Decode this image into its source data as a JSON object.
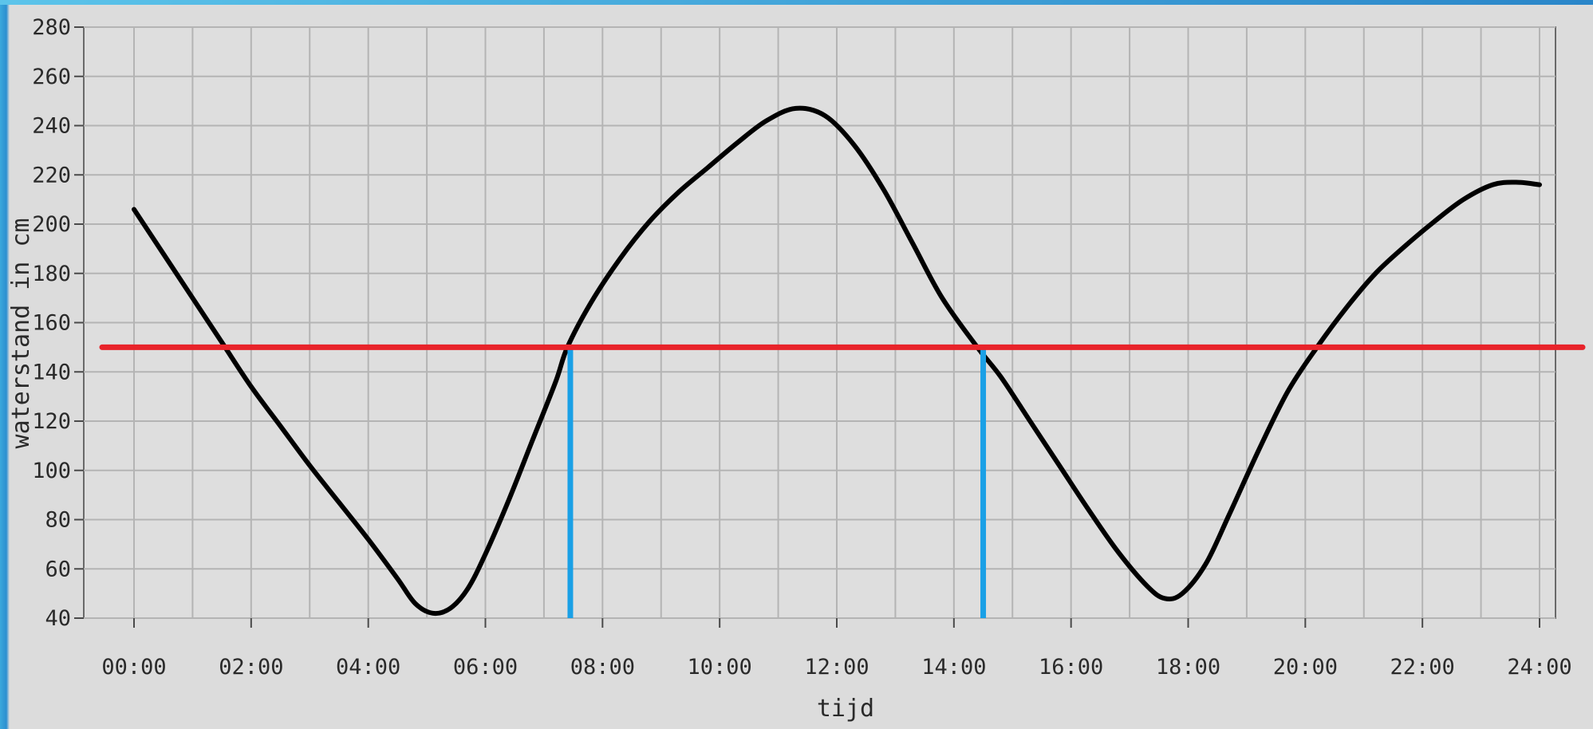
{
  "chart_data": {
    "type": "line",
    "xlabel": "tijd",
    "ylabel": "waterstand in cm",
    "xlim": [
      0,
      24
    ],
    "ylim": [
      40,
      280
    ],
    "x_ticks": [
      {
        "value": 0,
        "label": "00:00"
      },
      {
        "value": 2,
        "label": "02:00"
      },
      {
        "value": 4,
        "label": "04:00"
      },
      {
        "value": 6,
        "label": "06:00"
      },
      {
        "value": 8,
        "label": "08:00"
      },
      {
        "value": 10,
        "label": "10:00"
      },
      {
        "value": 12,
        "label": "12:00"
      },
      {
        "value": 14,
        "label": "14:00"
      },
      {
        "value": 16,
        "label": "16:00"
      },
      {
        "value": 18,
        "label": "18:00"
      },
      {
        "value": 20,
        "label": "20:00"
      },
      {
        "value": 22,
        "label": "22:00"
      },
      {
        "value": 24,
        "label": "24:00"
      }
    ],
    "y_ticks": [
      40,
      60,
      80,
      100,
      120,
      140,
      160,
      180,
      200,
      220,
      240,
      260,
      280
    ],
    "grid": true,
    "series": [
      {
        "color": "#000000",
        "points": [
          [
            0.0,
            206
          ],
          [
            0.5,
            188
          ],
          [
            1.0,
            170
          ],
          [
            1.5,
            152
          ],
          [
            2.0,
            134
          ],
          [
            2.5,
            118
          ],
          [
            3.0,
            102
          ],
          [
            3.5,
            87
          ],
          [
            4.0,
            72
          ],
          [
            4.5,
            56
          ],
          [
            4.8,
            46
          ],
          [
            5.1,
            42
          ],
          [
            5.4,
            44
          ],
          [
            5.7,
            52
          ],
          [
            6.0,
            66
          ],
          [
            6.4,
            88
          ],
          [
            6.8,
            112
          ],
          [
            7.2,
            136
          ],
          [
            7.4,
            150
          ],
          [
            7.8,
            168
          ],
          [
            8.3,
            186
          ],
          [
            8.8,
            201
          ],
          [
            9.3,
            213
          ],
          [
            9.8,
            223
          ],
          [
            10.3,
            233
          ],
          [
            10.8,
            242
          ],
          [
            11.3,
            247
          ],
          [
            11.8,
            244
          ],
          [
            12.3,
            232
          ],
          [
            12.8,
            214
          ],
          [
            13.3,
            192
          ],
          [
            13.8,
            170
          ],
          [
            14.4,
            150
          ],
          [
            14.8,
            138
          ],
          [
            15.3,
            120
          ],
          [
            15.8,
            102
          ],
          [
            16.3,
            84
          ],
          [
            16.8,
            67
          ],
          [
            17.3,
            53
          ],
          [
            17.6,
            48
          ],
          [
            17.9,
            50
          ],
          [
            18.3,
            62
          ],
          [
            18.7,
            82
          ],
          [
            19.2,
            108
          ],
          [
            19.7,
            132
          ],
          [
            20.2,
            150
          ],
          [
            20.7,
            166
          ],
          [
            21.2,
            180
          ],
          [
            21.7,
            191
          ],
          [
            22.2,
            201
          ],
          [
            22.7,
            210
          ],
          [
            23.2,
            216
          ],
          [
            23.6,
            217
          ],
          [
            24.0,
            216
          ]
        ]
      }
    ],
    "annotations": {
      "threshold_y": 150,
      "threshold_color": "#e8232a",
      "marker_x": [
        7.45,
        14.5
      ],
      "marker_color": "#1aa0e6"
    }
  }
}
